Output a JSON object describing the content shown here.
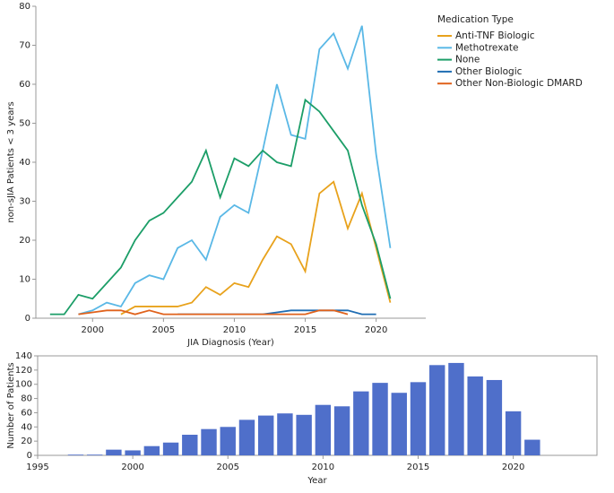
{
  "chart_data": [
    {
      "type": "line",
      "xlabel": "JIA Diagnosis (Year)",
      "ylabel": "non-sJIA Patients < 3 years",
      "legend_title": "Medication Type",
      "legend": "right",
      "x": [
        1997,
        1998,
        1999,
        2000,
        2001,
        2002,
        2003,
        2004,
        2005,
        2006,
        2007,
        2008,
        2009,
        2010,
        2011,
        2012,
        2013,
        2014,
        2015,
        2016,
        2017,
        2018,
        2019,
        2020,
        2021
      ],
      "xlim": [
        1996,
        2023.5
      ],
      "xticks": [
        2000,
        2005,
        2010,
        2015,
        2020
      ],
      "ylim": [
        0,
        80
      ],
      "yticks": [
        0,
        10,
        20,
        30,
        40,
        50,
        60,
        70,
        80
      ],
      "series": [
        {
          "name": "Anti-TNF Biologic",
          "color": "#e8a21c",
          "values": [
            null,
            null,
            null,
            null,
            null,
            1,
            3,
            3,
            3,
            3,
            4,
            8,
            6,
            9,
            8,
            15,
            21,
            19,
            12,
            32,
            35,
            23,
            32,
            18,
            4
          ]
        },
        {
          "name": "Methotrexate",
          "color": "#5ab8e6",
          "values": [
            null,
            null,
            1,
            2,
            4,
            3,
            9,
            11,
            10,
            18,
            20,
            15,
            26,
            29,
            27,
            43,
            60,
            47,
            46,
            69,
            73,
            64,
            75,
            42,
            18
          ]
        },
        {
          "name": "None",
          "color": "#1c9e68",
          "values": [
            1,
            1,
            6,
            5,
            9,
            13,
            20,
            25,
            27,
            31,
            35,
            43,
            31,
            41,
            39,
            43,
            40,
            39,
            56,
            53,
            48,
            43,
            29,
            19,
            5
          ]
        },
        {
          "name": "Other Biologic",
          "color": "#1f6db3",
          "values": [
            null,
            null,
            null,
            null,
            null,
            null,
            null,
            null,
            null,
            1,
            1,
            1,
            1,
            1,
            1,
            1,
            1.5,
            2,
            2,
            2,
            2,
            2,
            1,
            1,
            null
          ]
        },
        {
          "name": "Other Non-Biologic DMARD",
          "color": "#e0621c",
          "values": [
            null,
            null,
            1,
            1.5,
            2,
            2,
            1,
            2,
            1,
            1,
            1,
            1,
            1,
            1,
            1,
            1,
            1,
            1,
            1,
            2,
            2,
            1,
            null,
            null,
            null
          ]
        }
      ]
    },
    {
      "type": "bar",
      "xlabel": "Year",
      "ylabel": "Number of Patients",
      "color": "#4f6fca",
      "x": [
        1997,
        1998,
        1999,
        2000,
        2001,
        2002,
        2003,
        2004,
        2005,
        2006,
        2007,
        2008,
        2009,
        2010,
        2011,
        2012,
        2013,
        2014,
        2015,
        2016,
        2017,
        2018,
        2019,
        2020,
        2021
      ],
      "values": [
        1,
        1,
        8,
        7,
        13,
        18,
        29,
        37,
        40,
        50,
        56,
        59,
        57,
        71,
        69,
        90,
        102,
        88,
        103,
        127,
        130,
        111,
        106,
        62,
        22
      ],
      "xlim": [
        1995,
        2024.4
      ],
      "xticks": [
        1995,
        2000,
        2005,
        2010,
        2015,
        2020
      ],
      "ylim": [
        0,
        140
      ],
      "yticks": [
        0,
        20,
        40,
        60,
        80,
        100,
        120,
        140
      ]
    }
  ]
}
